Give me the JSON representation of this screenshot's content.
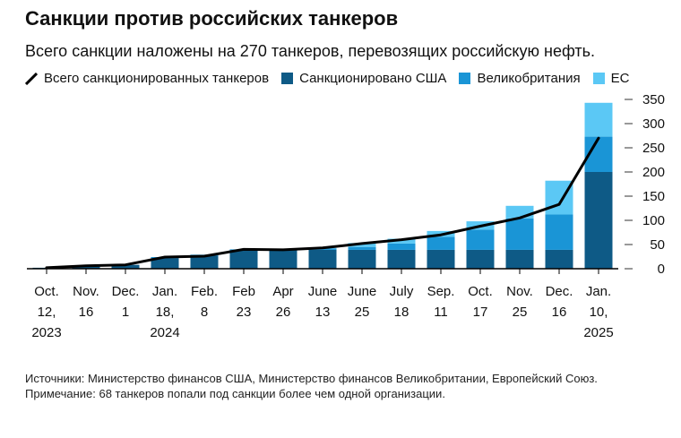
{
  "title": "Санкции против российских танкеров",
  "subtitle": "Всего санкции наложены на 270 танкеров, перевозящих российскую нефть.",
  "legend": {
    "total": "Всего санкционированных танкеров",
    "us": "Санкционировано США",
    "uk": "Великобритания",
    "eu": "ЕС"
  },
  "colors": {
    "us": "#0e5a86",
    "uk": "#1a95d6",
    "eu": "#5bc8f5",
    "line": "#000000"
  },
  "footer": {
    "sources": "Источники: Министерство финансов США, Министерство финансов Великобритании, Европейский Союз.",
    "note": "Примечание: 68 танкеров попали под санкции более чем одной организации."
  },
  "chart_data": {
    "type": "bar",
    "stacked": true,
    "categories": [
      [
        "Oct.",
        "12,",
        "2023"
      ],
      [
        "Nov.",
        "16"
      ],
      [
        "Dec.",
        "1"
      ],
      [
        "Jan.",
        "18,",
        "2024"
      ],
      [
        "Feb.",
        "8"
      ],
      [
        "Feb",
        "23"
      ],
      [
        "Apr",
        "26"
      ],
      [
        "June",
        "13"
      ],
      [
        "June",
        "25"
      ],
      [
        "July",
        "18"
      ],
      [
        "Sep.",
        "11"
      ],
      [
        "Oct.",
        "17"
      ],
      [
        "Nov.",
        "25"
      ],
      [
        "Dec.",
        "16"
      ],
      [
        "Jan.",
        "10,",
        "2025"
      ]
    ],
    "series": [
      {
        "name": "Санкционировано США",
        "key": "us",
        "values": [
          2,
          6,
          8,
          22,
          27,
          38,
          38,
          39,
          39,
          39,
          39,
          39,
          39,
          39,
          200
        ]
      },
      {
        "name": "Великобритания",
        "key": "uk",
        "values": [
          0,
          0,
          0,
          2,
          2,
          2,
          2,
          3,
          6,
          13,
          27,
          42,
          65,
          73,
          73
        ]
      },
      {
        "name": "ЕС",
        "key": "eu",
        "values": [
          0,
          0,
          0,
          0,
          0,
          0,
          0,
          1,
          8,
          10,
          12,
          17,
          26,
          70,
          70
        ]
      }
    ],
    "line": {
      "name": "Всего санкционированных танкеров",
      "values": [
        2,
        6,
        8,
        24,
        26,
        40,
        39,
        43,
        52,
        60,
        70,
        88,
        105,
        133,
        270
      ]
    },
    "yticks": [
      0,
      50,
      100,
      150,
      200,
      250,
      300,
      350
    ],
    "ylim": [
      0,
      350
    ],
    "grid": false,
    "legend_position": "top"
  }
}
